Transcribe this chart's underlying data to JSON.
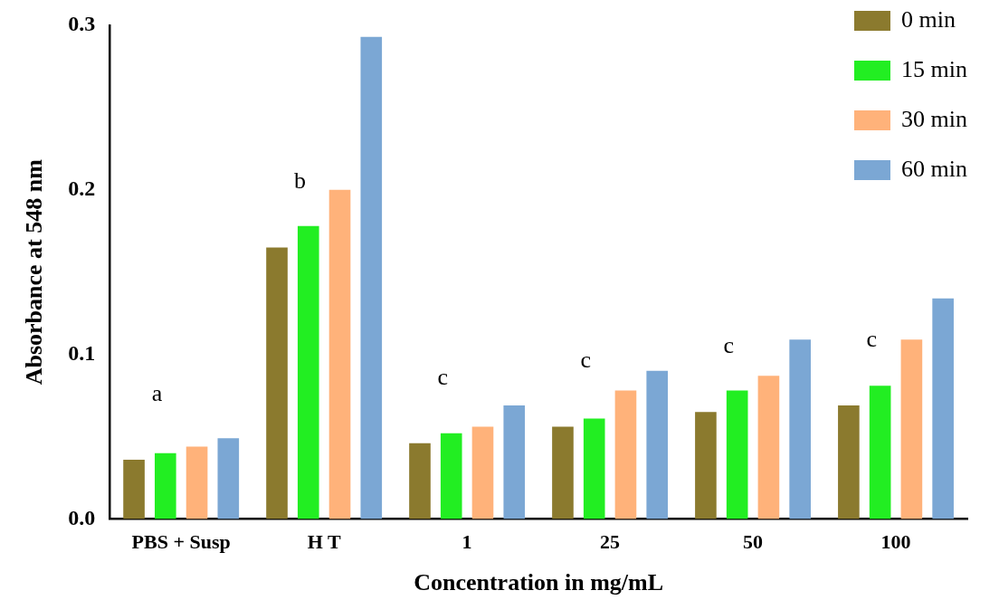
{
  "chart_data": {
    "type": "bar",
    "xlabel": "Concentration in mg/mL",
    "ylabel": "Absorbance at 548 nm",
    "categories": [
      "PBS + Susp",
      "H T",
      "1",
      "25",
      "50",
      "100"
    ],
    "series": [
      {
        "name": "0 min",
        "color": "#8b7a2e",
        "values": [
          0.036,
          0.165,
          0.046,
          0.056,
          0.065,
          0.069
        ]
      },
      {
        "name": "15 min",
        "color": "#22ee22",
        "values": [
          0.04,
          0.178,
          0.052,
          0.061,
          0.078,
          0.081
        ]
      },
      {
        "name": "30 min",
        "color": "#ffb27a",
        "values": [
          0.044,
          0.2,
          0.056,
          0.078,
          0.087,
          0.109
        ]
      },
      {
        "name": "60 min",
        "color": "#7ba7d4",
        "values": [
          0.049,
          0.293,
          0.069,
          0.09,
          0.109,
          0.134
        ]
      }
    ],
    "ylim": [
      0,
      0.3
    ],
    "yticks": [
      {
        "value": 0,
        "label": "0.0"
      },
      {
        "value": 0.1,
        "label": "0.1"
      },
      {
        "value": 0.2,
        "label": "0.2"
      },
      {
        "value": 0.3,
        "label": "0.3"
      }
    ],
    "annotations": [
      "a",
      "b",
      "c",
      "c",
      "c",
      "c"
    ],
    "grid": false,
    "legend": "top right"
  }
}
